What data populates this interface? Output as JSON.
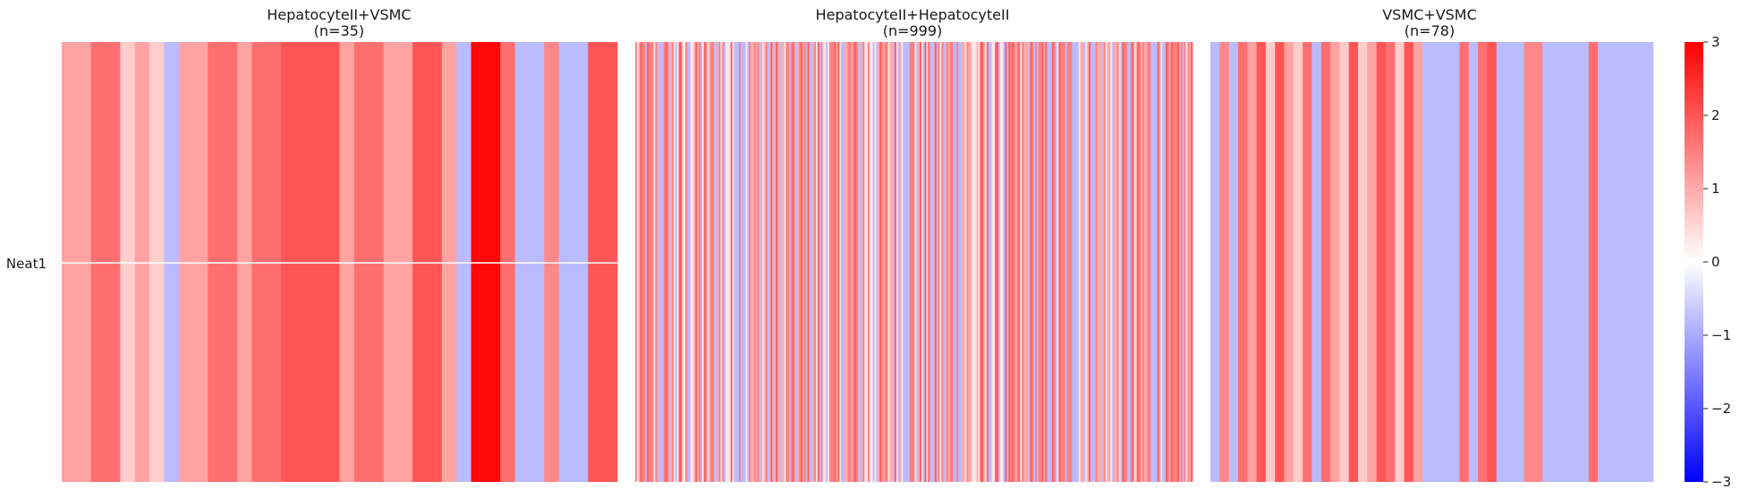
{
  "chart_data": {
    "type": "heatmap",
    "row_labels": [
      "Neat1"
    ],
    "colorbar": {
      "min": -3,
      "max": 3,
      "ticks": [
        3,
        2,
        1,
        0,
        -1,
        -2,
        -3
      ],
      "tick_labels": [
        "3",
        "2",
        "1",
        "0",
        "−1",
        "−2",
        "−3"
      ],
      "colors": {
        "low": "#0000ff",
        "mid": "#ffffff",
        "high": "#ff0000"
      }
    },
    "panels": [
      {
        "title_line1": "HepatocyteII+VSMC",
        "title_line2": "(n=35)",
        "n": 35,
        "values": [
          1.1,
          1.1,
          1.7,
          1.7,
          0.6,
          1.1,
          0.6,
          -0.8,
          1.1,
          1.1,
          1.7,
          1.7,
          1.1,
          1.7,
          1.7,
          2.0,
          2.0,
          2.0,
          2.0,
          1.1,
          1.7,
          1.7,
          1.1,
          1.1,
          2.0,
          2.0,
          1.1,
          -0.8,
          2.9,
          2.9,
          1.7,
          -0.8,
          -0.8,
          1.4,
          -0.8,
          -0.8,
          2.0,
          2.0
        ]
      },
      {
        "title_line1": "HepatocyteII+HepatocyteII",
        "title_line2": "(n=999)",
        "n": 999,
        "values": []
      },
      {
        "title_line1": "VSMC+VSMC",
        "title_line2": "(n=78)",
        "n": 78,
        "values": [
          -0.8,
          1.4,
          -0.8,
          1.7,
          1.1,
          2.0,
          0.6,
          2.0,
          1.1,
          0.6,
          1.7,
          -0.8,
          1.7,
          1.1,
          0.6,
          2.0,
          0.6,
          1.1,
          2.0,
          1.7,
          0.6,
          2.0,
          1.1,
          -0.8,
          -0.8,
          -0.8,
          -0.8,
          1.7,
          -0.8,
          1.7,
          2.0,
          -0.8,
          -0.8,
          -0.8,
          1.4,
          1.4,
          -0.8,
          -0.8,
          -0.8,
          -0.8,
          -0.8,
          1.7,
          -0.8,
          -0.8,
          -0.8,
          -0.8,
          -0.8,
          -0.8
        ]
      }
    ]
  }
}
